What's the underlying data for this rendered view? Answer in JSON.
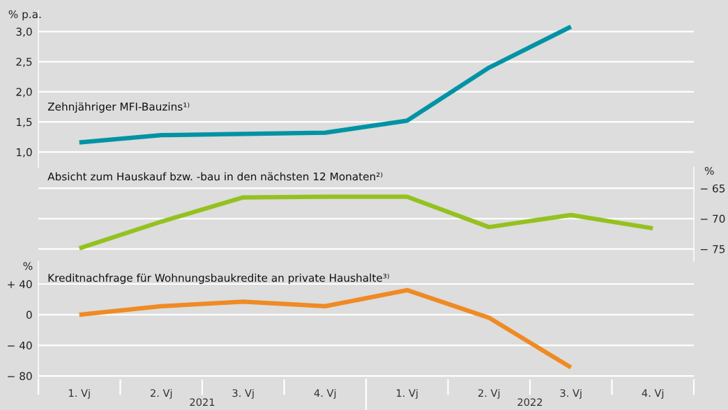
{
  "chart_data": [
    {
      "type": "line",
      "title": "Zehnjähriger MFI-Bauzins¹⁾",
      "ylabel": "% p.a.",
      "categories": [
        null,
        null,
        null,
        null,
        null,
        null,
        null,
        null
      ],
      "series": [
        {
          "color": "#0093a5",
          "values": [
            1.16,
            1.28,
            1.3,
            1.32,
            1.52,
            2.4,
            3.08,
            null
          ]
        }
      ],
      "ylim": [
        0.75,
        3.35
      ],
      "yticks": [
        {
          "value": 1.0,
          "label": "1,0"
        },
        {
          "value": 1.5,
          "label": "1,5"
        },
        {
          "value": 2.0,
          "label": "2,0"
        },
        {
          "value": 2.5,
          "label": "2,5"
        },
        {
          "value": 3.0,
          "label": "3,0"
        }
      ],
      "grid": "y",
      "tick_labels": "y"
    },
    {
      "type": "line",
      "title": "Absicht zum Hauskauf bzw. -bau in den nächsten 12 Monaten²⁾",
      "ylabel": "%",
      "categories": [
        null,
        null,
        null,
        null,
        null,
        null,
        null,
        null
      ],
      "series": [
        {
          "color": "#95c11f",
          "values": [
            -74.9,
            -70.5,
            -66.5,
            -66.4,
            -66.4,
            -71.4,
            -69.4,
            -71.6
          ]
        }
      ],
      "ylim": [
        -77,
        -61.5
      ],
      "yticks": [
        {
          "value": -75,
          "label": "− 75"
        },
        {
          "value": -70,
          "label": "− 70"
        },
        {
          "value": -65,
          "label": "− 65"
        }
      ],
      "grid": "y",
      "tick_labels": "y"
    },
    {
      "type": "line",
      "title": "Kreditnachfrage für Wohnungsbaukredite an private Haushalte³⁾",
      "ylabel": "%",
      "categories": [
        "1. Vj",
        "2. Vj",
        "3. Vj",
        "4. Vj",
        "1. Vj",
        "2. Vj",
        "3. Vj",
        "4. Vj"
      ],
      "series": [
        {
          "color": "#f08a24",
          "values": [
            0,
            11,
            17,
            11,
            32,
            -4,
            -69,
            null
          ]
        }
      ],
      "ylim": [
        -84.5,
        70
      ],
      "yticks": [
        {
          "value": -80,
          "label": "− 80"
        },
        {
          "value": -40,
          "label": "− 40"
        },
        0,
        {
          "value": 40,
          "label": "+ 40"
        }
      ],
      "grid": "y",
      "annotations": [
        "2021",
        "2022"
      ]
    }
  ]
}
